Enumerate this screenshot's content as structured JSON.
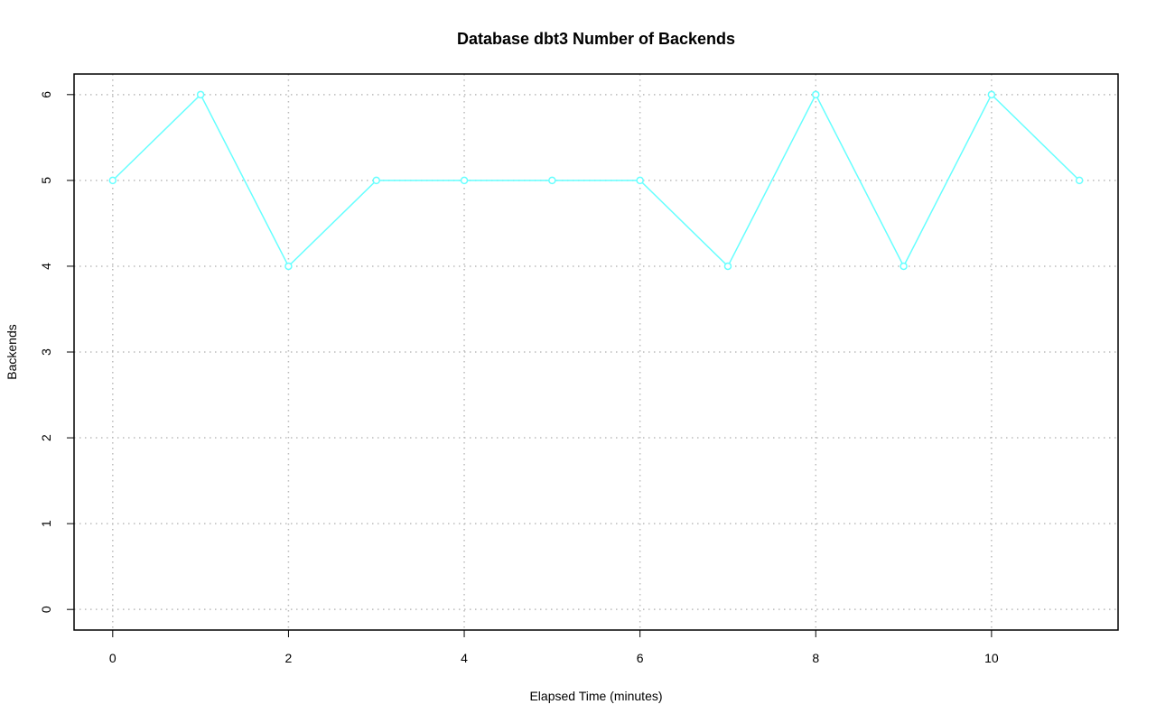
{
  "chart_data": {
    "type": "line",
    "title": "Database dbt3 Number of Backends",
    "x_label": "Elapsed Time (minutes)",
    "y_label": "Backends",
    "x": [
      0,
      1,
      2,
      3,
      4,
      5,
      6,
      7,
      8,
      9,
      10,
      11
    ],
    "values": [
      5,
      6,
      4,
      5,
      5,
      5,
      5,
      4,
      6,
      4,
      6,
      5
    ],
    "color": "#66ffff",
    "xlim": [
      -0.44,
      11.44
    ],
    "xticks": [
      0,
      2,
      4,
      6,
      8,
      10
    ],
    "ylim": [
      -0.24,
      6.24
    ],
    "yticks": [
      0,
      1,
      2,
      3,
      4,
      5,
      6
    ],
    "grid": true
  }
}
